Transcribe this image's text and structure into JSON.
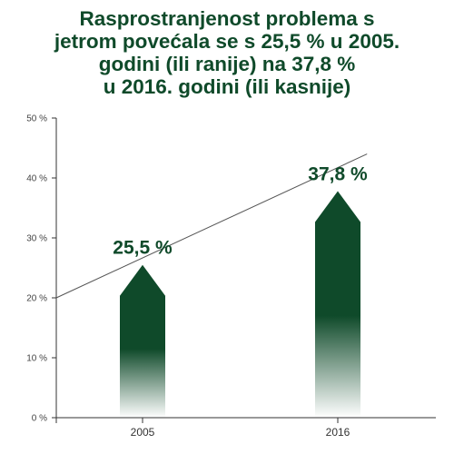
{
  "chart_data": {
    "type": "bar",
    "title_lines": [
      "Rasprostranjenost problema s",
      "jetrom povećala se s 25,5 % u 2005.",
      "godini (ili ranije) na 37,8 %",
      "u 2016. godini (ili kasnije)"
    ],
    "categories": [
      "2005",
      "2016"
    ],
    "values": [
      25.5,
      37.8
    ],
    "data_labels": [
      "25,5 %",
      "37,8 %"
    ],
    "ytick_labels": [
      "0 %",
      "10 %",
      "20 %",
      "30 %",
      "40 %",
      "50 %"
    ],
    "yticks": [
      0,
      10,
      20,
      30,
      40,
      50
    ],
    "ylim": [
      0,
      50
    ],
    "trend_line": {
      "start": [
        0,
        20
      ],
      "end": [
        1.15,
        44
      ]
    },
    "xlabel": "",
    "ylabel": "",
    "grid": false,
    "colors": {
      "bar": "#0f4a2a",
      "title": "#0f4a2a",
      "axis": "#333333",
      "trend": "#555555"
    }
  }
}
